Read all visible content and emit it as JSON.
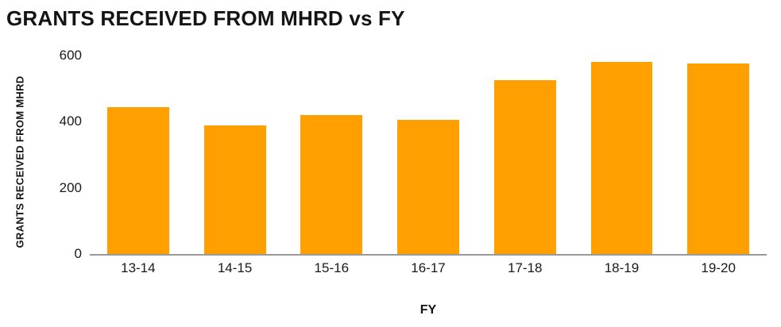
{
  "chart_data": {
    "type": "bar",
    "title": "GRANTS RECEIVED FROM MHRD vs FY",
    "xlabel": "FY",
    "ylabel": "GRANTS RECEIVED FROM MHRD",
    "categories": [
      "13-14",
      "14-15",
      "15-16",
      "16-17",
      "17-18",
      "18-19",
      "19-20"
    ],
    "values": [
      445,
      390,
      420,
      405,
      525,
      580,
      575
    ],
    "yticks": [
      0,
      200,
      400,
      600
    ],
    "ylim": [
      0,
      600
    ],
    "bar_color": "#ffa000",
    "axis_color": "#999999",
    "grid": false,
    "legend": "none"
  }
}
